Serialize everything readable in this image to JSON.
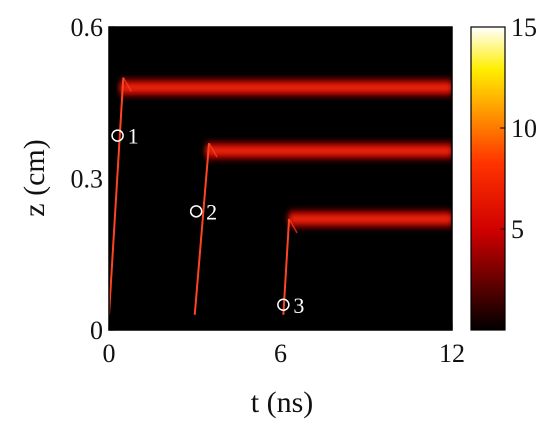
{
  "chart_data": {
    "type": "heatmap",
    "title": "",
    "xlabel": "t (ns)",
    "ylabel": "z (cm)",
    "xlim": [
      0,
      12
    ],
    "ylim": [
      0,
      0.6
    ],
    "xticks": [
      {
        "value": 0,
        "label": "0"
      },
      {
        "value": 6,
        "label": "6"
      },
      {
        "value": 12,
        "label": "12"
      }
    ],
    "yticks": [
      {
        "value": 0,
        "label": "0"
      },
      {
        "value": 0.3,
        "label": "0.3"
      },
      {
        "value": 0.6,
        "label": "0.6"
      }
    ],
    "colorbar": {
      "range": [
        0,
        15
      ],
      "ticks": [
        {
          "value": 5,
          "label": "5"
        },
        {
          "value": 10,
          "label": "10"
        },
        {
          "value": 15,
          "label": "15"
        }
      ],
      "colormap": "hot"
    },
    "fronts": [
      {
        "t0": 0.0,
        "t1": 0.5,
        "z0": 0.03,
        "z1": 0.5
      },
      {
        "t0": 3.0,
        "t1": 3.5,
        "z0": 0.03,
        "z1": 0.37
      },
      {
        "t0": 6.1,
        "t1": 6.3,
        "z0": 0.03,
        "z1": 0.22
      }
    ],
    "bands": [
      {
        "z": 0.48,
        "t_start": 0.4,
        "t_end": 12,
        "intensity": 8
      },
      {
        "z": 0.355,
        "t_start": 3.4,
        "t_end": 12,
        "intensity": 8
      },
      {
        "z": 0.22,
        "t_start": 6.3,
        "t_end": 12,
        "intensity": 8
      }
    ],
    "annotations": [
      {
        "label": "1",
        "t": 0.3,
        "z": 0.385
      },
      {
        "label": "2",
        "t": 3.05,
        "z": 0.235
      },
      {
        "label": "3",
        "t": 6.1,
        "z": 0.05
      }
    ],
    "colors": {
      "background": "#000000",
      "band_core": "#ff2a10",
      "band_glow": "#b00000"
    }
  }
}
